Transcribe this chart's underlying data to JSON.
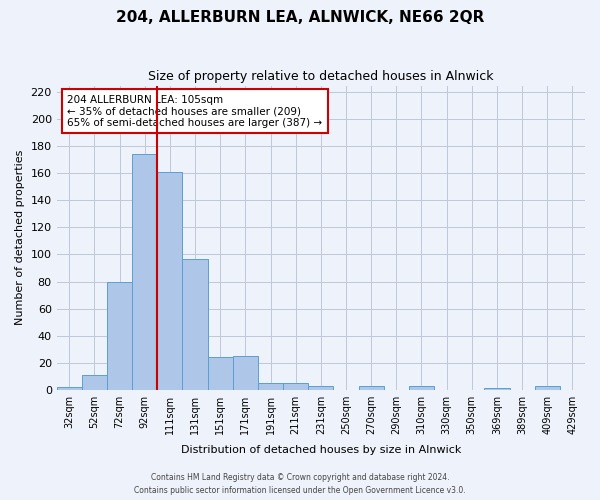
{
  "title": "204, ALLERBURN LEA, ALNWICK, NE66 2QR",
  "subtitle": "Size of property relative to detached houses in Alnwick",
  "xlabel": "Distribution of detached houses by size in Alnwick",
  "ylabel": "Number of detached properties",
  "bar_labels": [
    "32sqm",
    "52sqm",
    "72sqm",
    "92sqm",
    "111sqm",
    "131sqm",
    "151sqm",
    "171sqm",
    "191sqm",
    "211sqm",
    "231sqm",
    "250sqm",
    "270sqm",
    "290sqm",
    "310sqm",
    "330sqm",
    "350sqm",
    "369sqm",
    "389sqm",
    "409sqm",
    "429sqm"
  ],
  "bar_values": [
    2,
    11,
    80,
    174,
    161,
    97,
    24,
    25,
    5,
    5,
    3,
    0,
    3,
    0,
    3,
    0,
    0,
    1,
    0,
    3,
    0
  ],
  "bar_color": "#aec6e8",
  "bar_edge_color": "#5a9fd4",
  "vline_color": "#cc0000",
  "vline_x": 3.5,
  "ylim": [
    0,
    225
  ],
  "yticks": [
    0,
    20,
    40,
    60,
    80,
    100,
    120,
    140,
    160,
    180,
    200,
    220
  ],
  "annotation_title": "204 ALLERBURN LEA: 105sqm",
  "annotation_line1": "← 35% of detached houses are smaller (209)",
  "annotation_line2": "65% of semi-detached houses are larger (387) →",
  "footer1": "Contains HM Land Registry data © Crown copyright and database right 2024.",
  "footer2": "Contains public sector information licensed under the Open Government Licence v3.0.",
  "background_color": "#eef2fb",
  "plot_bg_color": "#eef2fb",
  "grid_color": "#c0c8d8"
}
